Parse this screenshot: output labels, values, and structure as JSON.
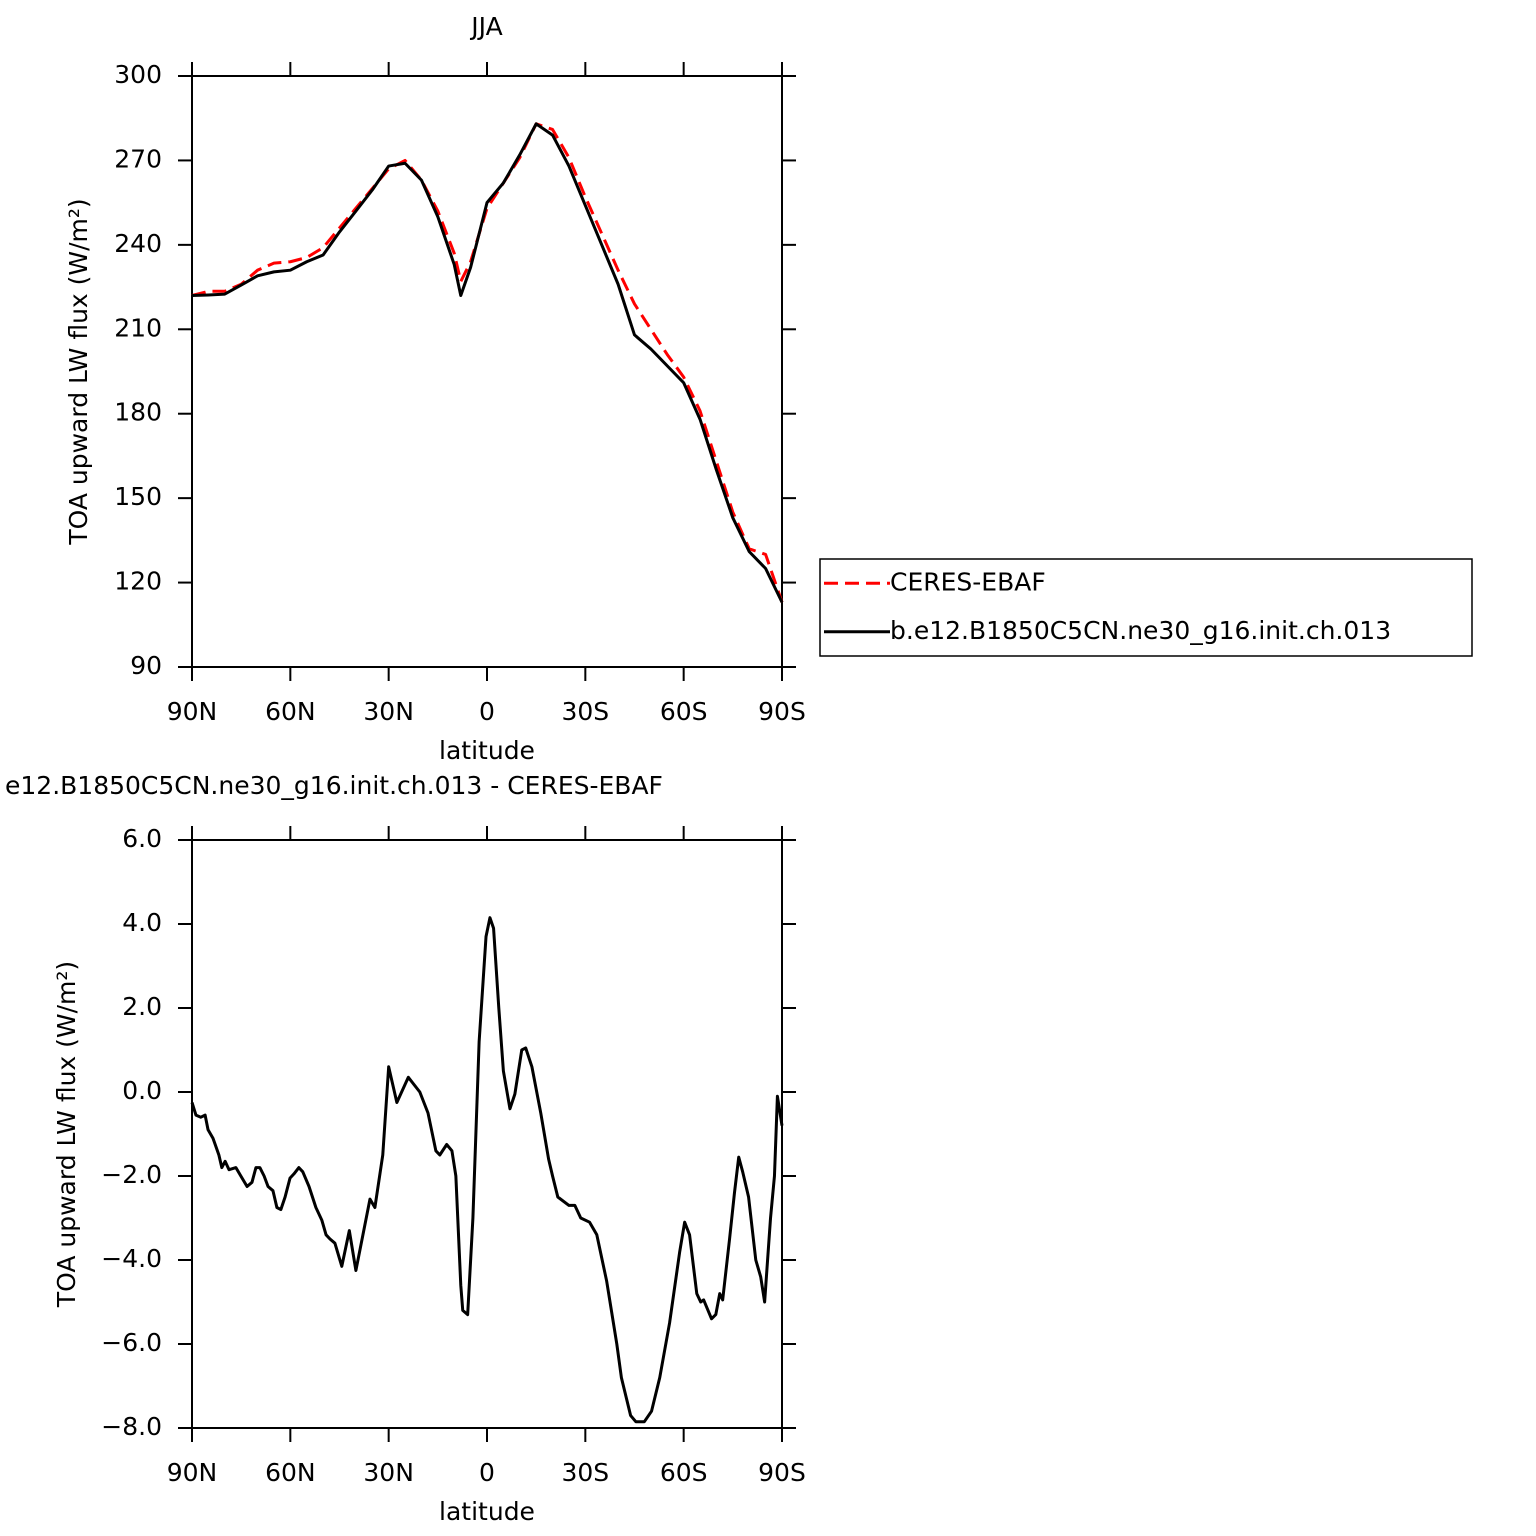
{
  "chart_data": [
    {
      "type": "line",
      "title": "JJA",
      "xlabel": "latitude",
      "ylabel": "TOA upward LW flux (W/m²)",
      "x": [
        90,
        85,
        80,
        75,
        70,
        65,
        60,
        55,
        50,
        45,
        40,
        35,
        30,
        25,
        20,
        15,
        10,
        8,
        5,
        0,
        -5,
        -10,
        -15,
        -20,
        -25,
        -30,
        -35,
        -40,
        -45,
        -50,
        -55,
        -60,
        -65,
        -70,
        -75,
        -80,
        -85,
        -90
      ],
      "series": [
        {
          "name": "CERES-EBAF",
          "color": "#ff0000",
          "linestyle": "dashed",
          "values": [
            222,
            223.5,
            223.5,
            226,
            231,
            233.5,
            234,
            235.5,
            239,
            246,
            253,
            260,
            267,
            270,
            263,
            252,
            237,
            227,
            234,
            253,
            262,
            271,
            283,
            281,
            271,
            257,
            244,
            231,
            219,
            210,
            201,
            193,
            181,
            163,
            145,
            132,
            130,
            113
          ]
        },
        {
          "name": "b.e12.B1850C5CN.ne30_g16.init.ch.013",
          "color": "#000000",
          "linestyle": "solid",
          "values": [
            222,
            222.2,
            222.5,
            225.7,
            229,
            230.4,
            231,
            234,
            236.4,
            244.6,
            252,
            259.5,
            268,
            269,
            263,
            250,
            233,
            222,
            232,
            255,
            262,
            272,
            283,
            279,
            268,
            254,
            240,
            226,
            208,
            203,
            197,
            191,
            178,
            160,
            143,
            131,
            125,
            113
          ]
        }
      ],
      "xlim": [
        90,
        -90
      ],
      "xticks": [
        {
          "value": 90,
          "label": "90N"
        },
        {
          "value": 60,
          "label": "60N"
        },
        {
          "value": 30,
          "label": "30N"
        },
        0,
        {
          "value": -30,
          "label": "30S"
        },
        {
          "value": -60,
          "label": "60S"
        },
        {
          "value": -90,
          "label": "90S"
        }
      ],
      "ylim": [
        90,
        300
      ],
      "yticks": [
        90,
        120,
        150,
        180,
        210,
        240,
        270,
        300
      ],
      "legend": "right"
    },
    {
      "type": "line",
      "title": "e12.B1850C5CN.ne30_g16.init.ch.013 - CERES-EBAF",
      "xlabel": "latitude",
      "ylabel": "TOA upward LW flux (W/m²)",
      "x": [
        90,
        88.8,
        87.3,
        86,
        85.1,
        83.6,
        81.8,
        80.9,
        79.9,
        78.7,
        76.6,
        75.1,
        73.2,
        71.7,
        70.5,
        69.3,
        68,
        66.8,
        65.3,
        64.1,
        62.9,
        61.6,
        60.1,
        58.9,
        57.4,
        56.2,
        54.3,
        52.2,
        50.4,
        49.1,
        47.9,
        46.4,
        44.3,
        42,
        40,
        35.7,
        34.2,
        31.8,
        30,
        27.5,
        24,
        20.5,
        18,
        15.6,
        14.4,
        12.3,
        10.7,
        9.5,
        8,
        7.4,
        5.9,
        4.3,
        2.4,
        0.3,
        -0.9,
        -2,
        -3.6,
        -5,
        -7,
        -8.5,
        -10.6,
        -11.8,
        -13.7,
        -16.4,
        -18.8,
        -20,
        -21.6,
        -25,
        -26.8,
        -28.6,
        -31.3,
        -33.5,
        -36.5,
        -39.6,
        -41,
        -43.8,
        -45.4,
        -48,
        -50.2,
        -52.7,
        -55.7,
        -58.8,
        -60.3,
        -61.8,
        -64,
        -65.2,
        -66.1,
        -68.5,
        -69.8,
        -71,
        -71.9,
        -74,
        -75.5,
        -76.8,
        -78,
        -79.8,
        -82,
        -83.5,
        -84.7,
        -86.5,
        -87.7,
        -88.6,
        -90
      ],
      "values": [
        -0.25,
        -0.55,
        -0.6,
        -0.55,
        -0.9,
        -1.1,
        -1.5,
        -1.8,
        -1.65,
        -1.85,
        -1.8,
        -2.0,
        -2.25,
        -2.15,
        -1.8,
        -1.8,
        -2.0,
        -2.25,
        -2.35,
        -2.75,
        -2.8,
        -2.5,
        -2.05,
        -1.95,
        -1.8,
        -1.9,
        -2.25,
        -2.75,
        -3.05,
        -3.4,
        -3.5,
        -3.6,
        -4.15,
        -3.3,
        -4.25,
        -2.55,
        -2.75,
        -1.5,
        0.6,
        -0.25,
        0.35,
        0.0,
        -0.5,
        -1.4,
        -1.5,
        -1.25,
        -1.4,
        -2.0,
        -4.6,
        -5.2,
        -5.3,
        -3.0,
        1.2,
        3.7,
        4.15,
        3.9,
        2.0,
        0.5,
        -0.4,
        -0.05,
        1.0,
        1.05,
        0.6,
        -0.5,
        -1.6,
        -2.0,
        -2.5,
        -2.7,
        -2.7,
        -3.0,
        -3.1,
        -3.4,
        -4.5,
        -6.0,
        -6.8,
        -7.7,
        -7.85,
        -7.85,
        -7.6,
        -6.8,
        -5.5,
        -3.8,
        -3.1,
        -3.4,
        -4.8,
        -5.0,
        -4.95,
        -5.4,
        -5.3,
        -4.8,
        -4.95,
        -3.5,
        -2.4,
        -1.55,
        -1.9,
        -2.5,
        -4.0,
        -4.4,
        -5.0,
        -3.0,
        -2.0,
        -0.1,
        -0.8
      ],
      "color": "#000000",
      "xlim": [
        90,
        -90
      ],
      "xticks": [
        {
          "value": 90,
          "label": "90N"
        },
        {
          "value": 60,
          "label": "60N"
        },
        {
          "value": 30,
          "label": "30N"
        },
        0,
        {
          "value": -30,
          "label": "30S"
        },
        {
          "value": -60,
          "label": "60S"
        },
        {
          "value": -90,
          "label": "90S"
        }
      ],
      "ylim": [
        -8,
        6
      ],
      "yticks": [
        {
          "value": -8,
          "label": "−8.0"
        },
        {
          "value": -6,
          "label": "−6.0"
        },
        {
          "value": -4,
          "label": "−4.0"
        },
        {
          "value": -2,
          "label": "−2.0"
        },
        {
          "value": 0,
          "label": "0.0"
        },
        {
          "value": 2,
          "label": "2.0"
        },
        {
          "value": 4,
          "label": "4.0"
        },
        {
          "value": 6,
          "label": "6.0"
        }
      ]
    }
  ]
}
